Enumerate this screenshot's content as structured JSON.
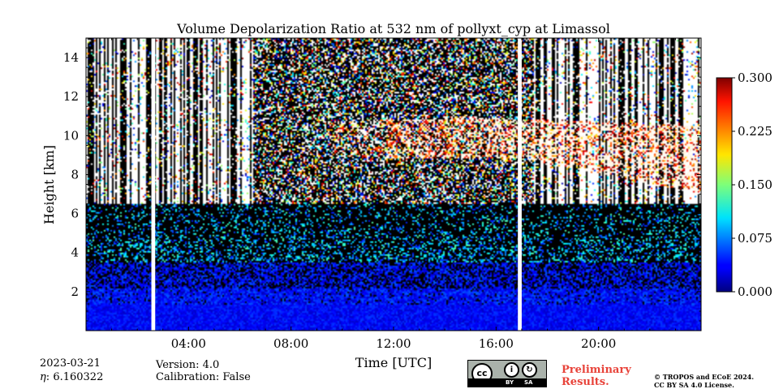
{
  "chart_data": {
    "type": "heatmap",
    "title": "Volume Depolarization Ratio at 532 nm of pollyxt_cyp at Limassol",
    "xlabel": "Time [UTC]",
    "ylabel": "Height [km]",
    "xlim_hours": [
      0,
      24
    ],
    "ylim_km": [
      0,
      15
    ],
    "x_ticks": [
      {
        "value": 4,
        "label": "04:00"
      },
      {
        "value": 8,
        "label": "08:00"
      },
      {
        "value": 12,
        "label": "12:00"
      },
      {
        "value": 16,
        "label": "16:00"
      },
      {
        "value": 20,
        "label": "20:00"
      }
    ],
    "y_ticks": [
      {
        "value": 2,
        "label": "2"
      },
      {
        "value": 4,
        "label": "4"
      },
      {
        "value": 6,
        "label": "6"
      },
      {
        "value": 8,
        "label": "8"
      },
      {
        "value": 10,
        "label": "10"
      },
      {
        "value": 12,
        "label": "12"
      },
      {
        "value": 14,
        "label": "14"
      }
    ],
    "colorbar": {
      "min": 0.0,
      "max": 0.3,
      "ticks": [
        "0.000",
        "0.075",
        "0.150",
        "0.225",
        "0.300"
      ],
      "colormap": "jet"
    },
    "data_gaps_hours": [
      {
        "start": 2.55,
        "end": 2.7
      },
      {
        "start": 16.85,
        "end": 17.0
      }
    ],
    "features": [
      {
        "name": "boundary layer aerosol",
        "height_km": [
          0,
          3.5
        ],
        "time_hours": [
          0,
          24
        ],
        "vdr": 0.03
      },
      {
        "name": "elevated aerosol layer",
        "height_km": [
          3.5,
          6.5
        ],
        "time_hours": [
          0,
          24
        ],
        "vdr": 0.08
      },
      {
        "name": "cirrus cloud",
        "height_km": [
          7,
          11
        ],
        "time_hours": [
          9,
          24
        ],
        "vdr": 0.25
      }
    ]
  },
  "footer": {
    "date": "2023-03-21",
    "eta": "6.160322",
    "version": "Version: 4.0",
    "calibration": "Calibration: False",
    "preliminary_line1": "Preliminary",
    "preliminary_line2": "Results.",
    "license_line1": "© TROPOS and ECoE 2024.",
    "license_line2": "CC BY SA 4.0 License.",
    "cc_by": "BY",
    "cc_sa": "SA"
  },
  "colors": {
    "no_data": "#000000",
    "prelim": "#e8433a",
    "cc_badge": "#aab2ab"
  }
}
